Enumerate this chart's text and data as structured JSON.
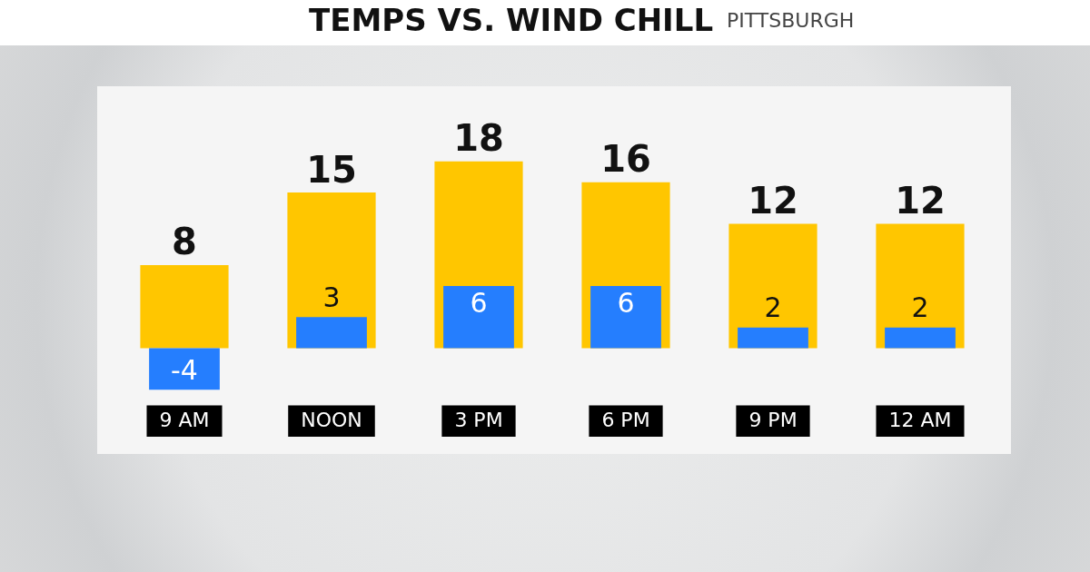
{
  "chart_data": {
    "type": "bar",
    "title": "TEMPS VS. WIND CHILL",
    "subtitle": "PITTSBURGH",
    "categories": [
      "9 AM",
      "NOON",
      "3 PM",
      "6 PM",
      "9 PM",
      "12 AM"
    ],
    "series": [
      {
        "color": "#ffc600",
        "values": [
          8,
          15,
          18,
          16,
          12,
          12
        ]
      },
      {
        "color": "#257efe",
        "values": [
          -4,
          3,
          6,
          6,
          2,
          2
        ]
      }
    ],
    "tick_labels": "x",
    "legend": false,
    "data_labels": true
  }
}
